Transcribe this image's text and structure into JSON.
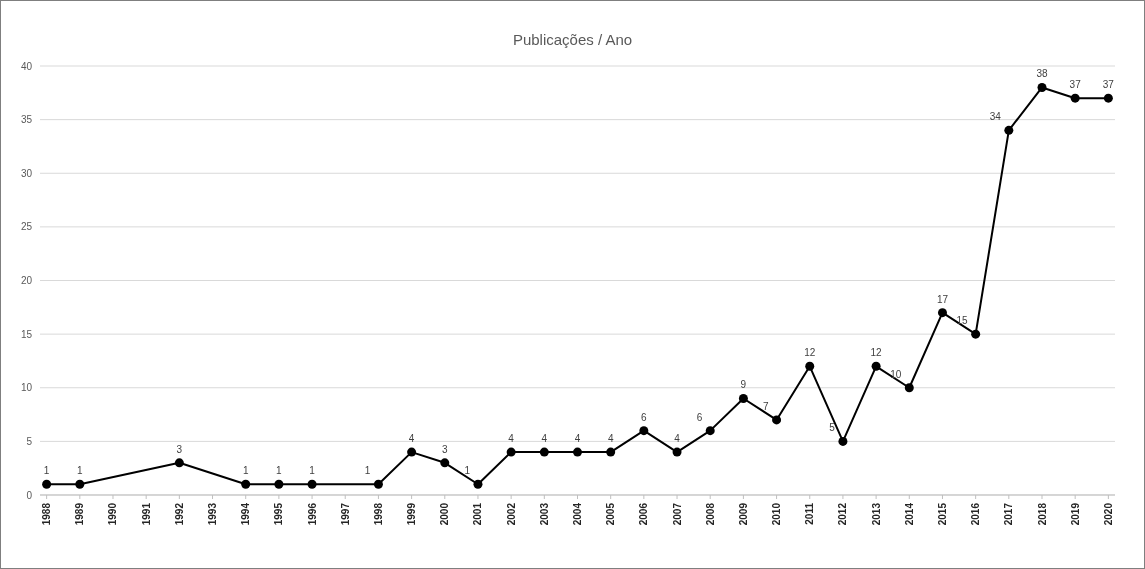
{
  "chart_data": {
    "type": "line",
    "title": "Publicações / Ano",
    "x": [
      1988,
      1989,
      1992,
      1994,
      1995,
      1996,
      1998,
      1999,
      2000,
      2001,
      2002,
      2003,
      2004,
      2005,
      2006,
      2007,
      2008,
      2009,
      2010,
      2011,
      2012,
      2013,
      2014,
      2015,
      2016,
      2017,
      2018,
      2019,
      2020
    ],
    "series": [
      {
        "color": "#000000",
        "values": [
          1,
          1,
          3,
          1,
          1,
          1,
          1,
          4,
          3,
          1,
          4,
          4,
          4,
          4,
          6,
          4,
          6,
          9,
          7,
          12,
          5,
          12,
          10,
          17,
          15,
          34,
          38,
          37,
          37
        ]
      }
    ],
    "xlim": [
      1987.8,
      2020.2
    ],
    "xticks": [
      1988,
      1989,
      1990,
      1991,
      1992,
      1993,
      1994,
      1995,
      1996,
      1997,
      1998,
      1999,
      2000,
      2001,
      2002,
      2003,
      2004,
      2005,
      2006,
      2007,
      2008,
      2009,
      2010,
      2011,
      2012,
      2013,
      2014,
      2015,
      2016,
      2017,
      2018,
      2019,
      2020
    ],
    "ylim": [
      0,
      40
    ],
    "yticks": [
      0,
      5,
      10,
      15,
      20,
      25,
      30,
      35,
      40
    ],
    "grid": "y",
    "marker": "circle",
    "line_style": "solid",
    "data_labels": true
  }
}
